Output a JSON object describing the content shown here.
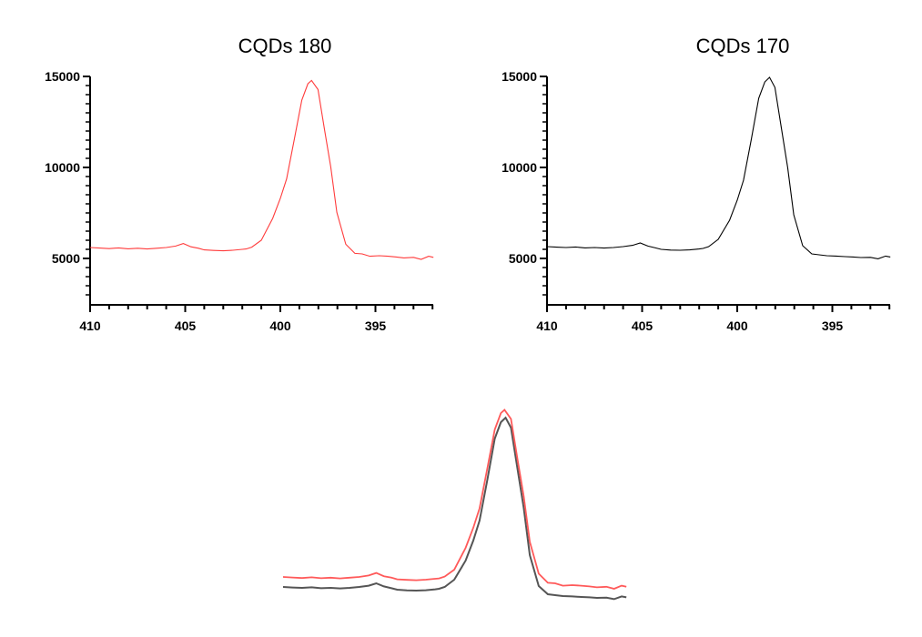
{
  "chart_data": [
    {
      "type": "line",
      "title": "CQDs 180",
      "xlabel": "",
      "ylabel": "",
      "xlim": [
        410,
        392
      ],
      "ylim": [
        2500,
        15000
      ],
      "xticks": [
        "410",
        "405",
        "400",
        "395"
      ],
      "yticks": [
        "15000",
        "10000",
        "5000"
      ],
      "color": "#ff3b3b",
      "series": [
        {
          "name": "CQDs 180",
          "x": [
            410,
            409.5,
            409,
            408.5,
            408,
            407.5,
            407,
            406.5,
            406,
            405.5,
            405.1,
            404.7,
            404.3,
            404,
            403.5,
            403,
            402.5,
            402,
            401.8,
            401.5,
            401,
            400.4,
            400,
            399.67,
            399.27,
            398.87,
            398.55,
            398.36,
            398.02,
            397.67,
            397.35,
            397.03,
            396.56,
            396.08,
            395.7,
            395.29,
            394.8,
            394.33,
            393.9,
            393.5,
            393,
            392.6,
            392.2,
            391.95
          ],
          "y": [
            5600,
            5570,
            5540,
            5580,
            5530,
            5560,
            5520,
            5560,
            5600,
            5680,
            5820,
            5640,
            5560,
            5470,
            5440,
            5420,
            5450,
            5500,
            5520,
            5620,
            6000,
            7200,
            8300,
            9370,
            11530,
            13700,
            14600,
            14780,
            14280,
            12030,
            10030,
            7530,
            5780,
            5280,
            5250,
            5120,
            5150,
            5120,
            5080,
            5030,
            5060,
            4950,
            5120,
            5060
          ]
        }
      ]
    },
    {
      "type": "line",
      "title": "CQDs 170",
      "xlabel": "",
      "ylabel": "",
      "xlim": [
        410,
        392
      ],
      "ylim": [
        2500,
        15000
      ],
      "xticks": [
        "410",
        "405",
        "400",
        "395"
      ],
      "yticks": [
        "15000",
        "10000",
        "5000"
      ],
      "color": "#000000",
      "series": [
        {
          "name": "CQDs 170",
          "x": [
            410,
            409.5,
            409,
            408.5,
            408,
            407.5,
            407,
            406.5,
            406,
            405.5,
            405.1,
            404.7,
            404.3,
            404,
            403.5,
            403,
            402.5,
            402,
            401.8,
            401.5,
            401,
            400.4,
            400,
            399.67,
            399.27,
            398.87,
            398.55,
            398.3,
            398.02,
            397.67,
            397.35,
            397.03,
            396.56,
            396.08,
            395.7,
            395.29,
            394.8,
            394.33,
            393.9,
            393.5,
            393,
            392.6,
            392.2,
            391.95
          ],
          "y": [
            5650,
            5620,
            5600,
            5630,
            5580,
            5600,
            5570,
            5600,
            5650,
            5720,
            5850,
            5680,
            5580,
            5500,
            5460,
            5450,
            5470,
            5520,
            5550,
            5650,
            6050,
            7100,
            8200,
            9300,
            11500,
            13800,
            14700,
            14950,
            14400,
            12100,
            10000,
            7400,
            5700,
            5250,
            5200,
            5150,
            5130,
            5100,
            5080,
            5050,
            5060,
            4980,
            5130,
            5080
          ]
        }
      ]
    },
    {
      "type": "line",
      "title": "",
      "note": "overlay of CQDs 180 (red) and CQDs 170 (black), vertically offset, no axes",
      "series_refs": [
        "CQDs 180",
        "CQDs 170"
      ]
    }
  ]
}
